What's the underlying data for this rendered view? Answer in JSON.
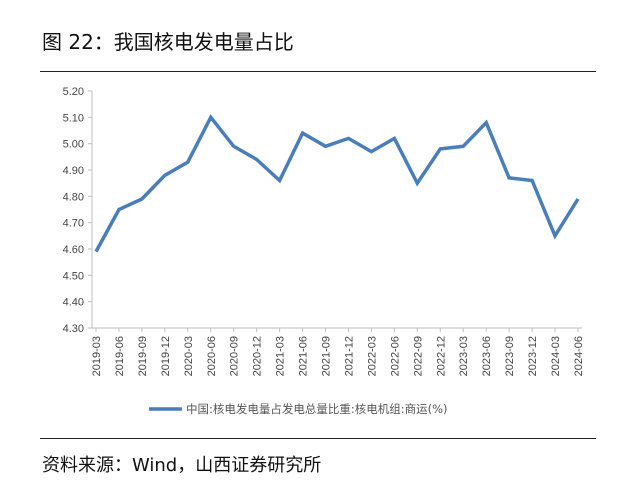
{
  "header": {
    "title": "图 22：我国核电发电量占比"
  },
  "footer": {
    "source": "资料来源：Wind，山西证券研究所"
  },
  "colors": {
    "series": "#4A7EBB",
    "axis": "#bfbfbf",
    "text": "#444444"
  },
  "chart_data": {
    "type": "line",
    "title": "",
    "xlabel": "",
    "ylabel": "",
    "ylim": [
      4.3,
      5.2
    ],
    "yticks": [
      "5.20",
      "5.10",
      "5.00",
      "4.90",
      "4.80",
      "4.70",
      "4.60",
      "4.50",
      "4.40",
      "4.30"
    ],
    "grid": false,
    "legend": "bottom",
    "categories": [
      "2019-03",
      "2019-06",
      "2019-09",
      "2019-12",
      "2020-03",
      "2020-06",
      "2020-09",
      "2020-12",
      "2021-03",
      "2021-06",
      "2021-09",
      "2021-12",
      "2022-03",
      "2022-06",
      "2022-09",
      "2022-12",
      "2023-03",
      "2023-06",
      "2023-09",
      "2023-12",
      "2024-03",
      "2024-06"
    ],
    "series": [
      {
        "name": "中国:核电发电量占发电总量比重:核电机组:商运(%)",
        "values": [
          4.59,
          4.75,
          4.79,
          4.88,
          4.93,
          5.1,
          4.99,
          4.94,
          4.86,
          5.04,
          4.99,
          5.02,
          4.97,
          5.02,
          4.85,
          4.98,
          4.99,
          5.08,
          4.87,
          4.86,
          4.65,
          4.79
        ]
      }
    ]
  }
}
